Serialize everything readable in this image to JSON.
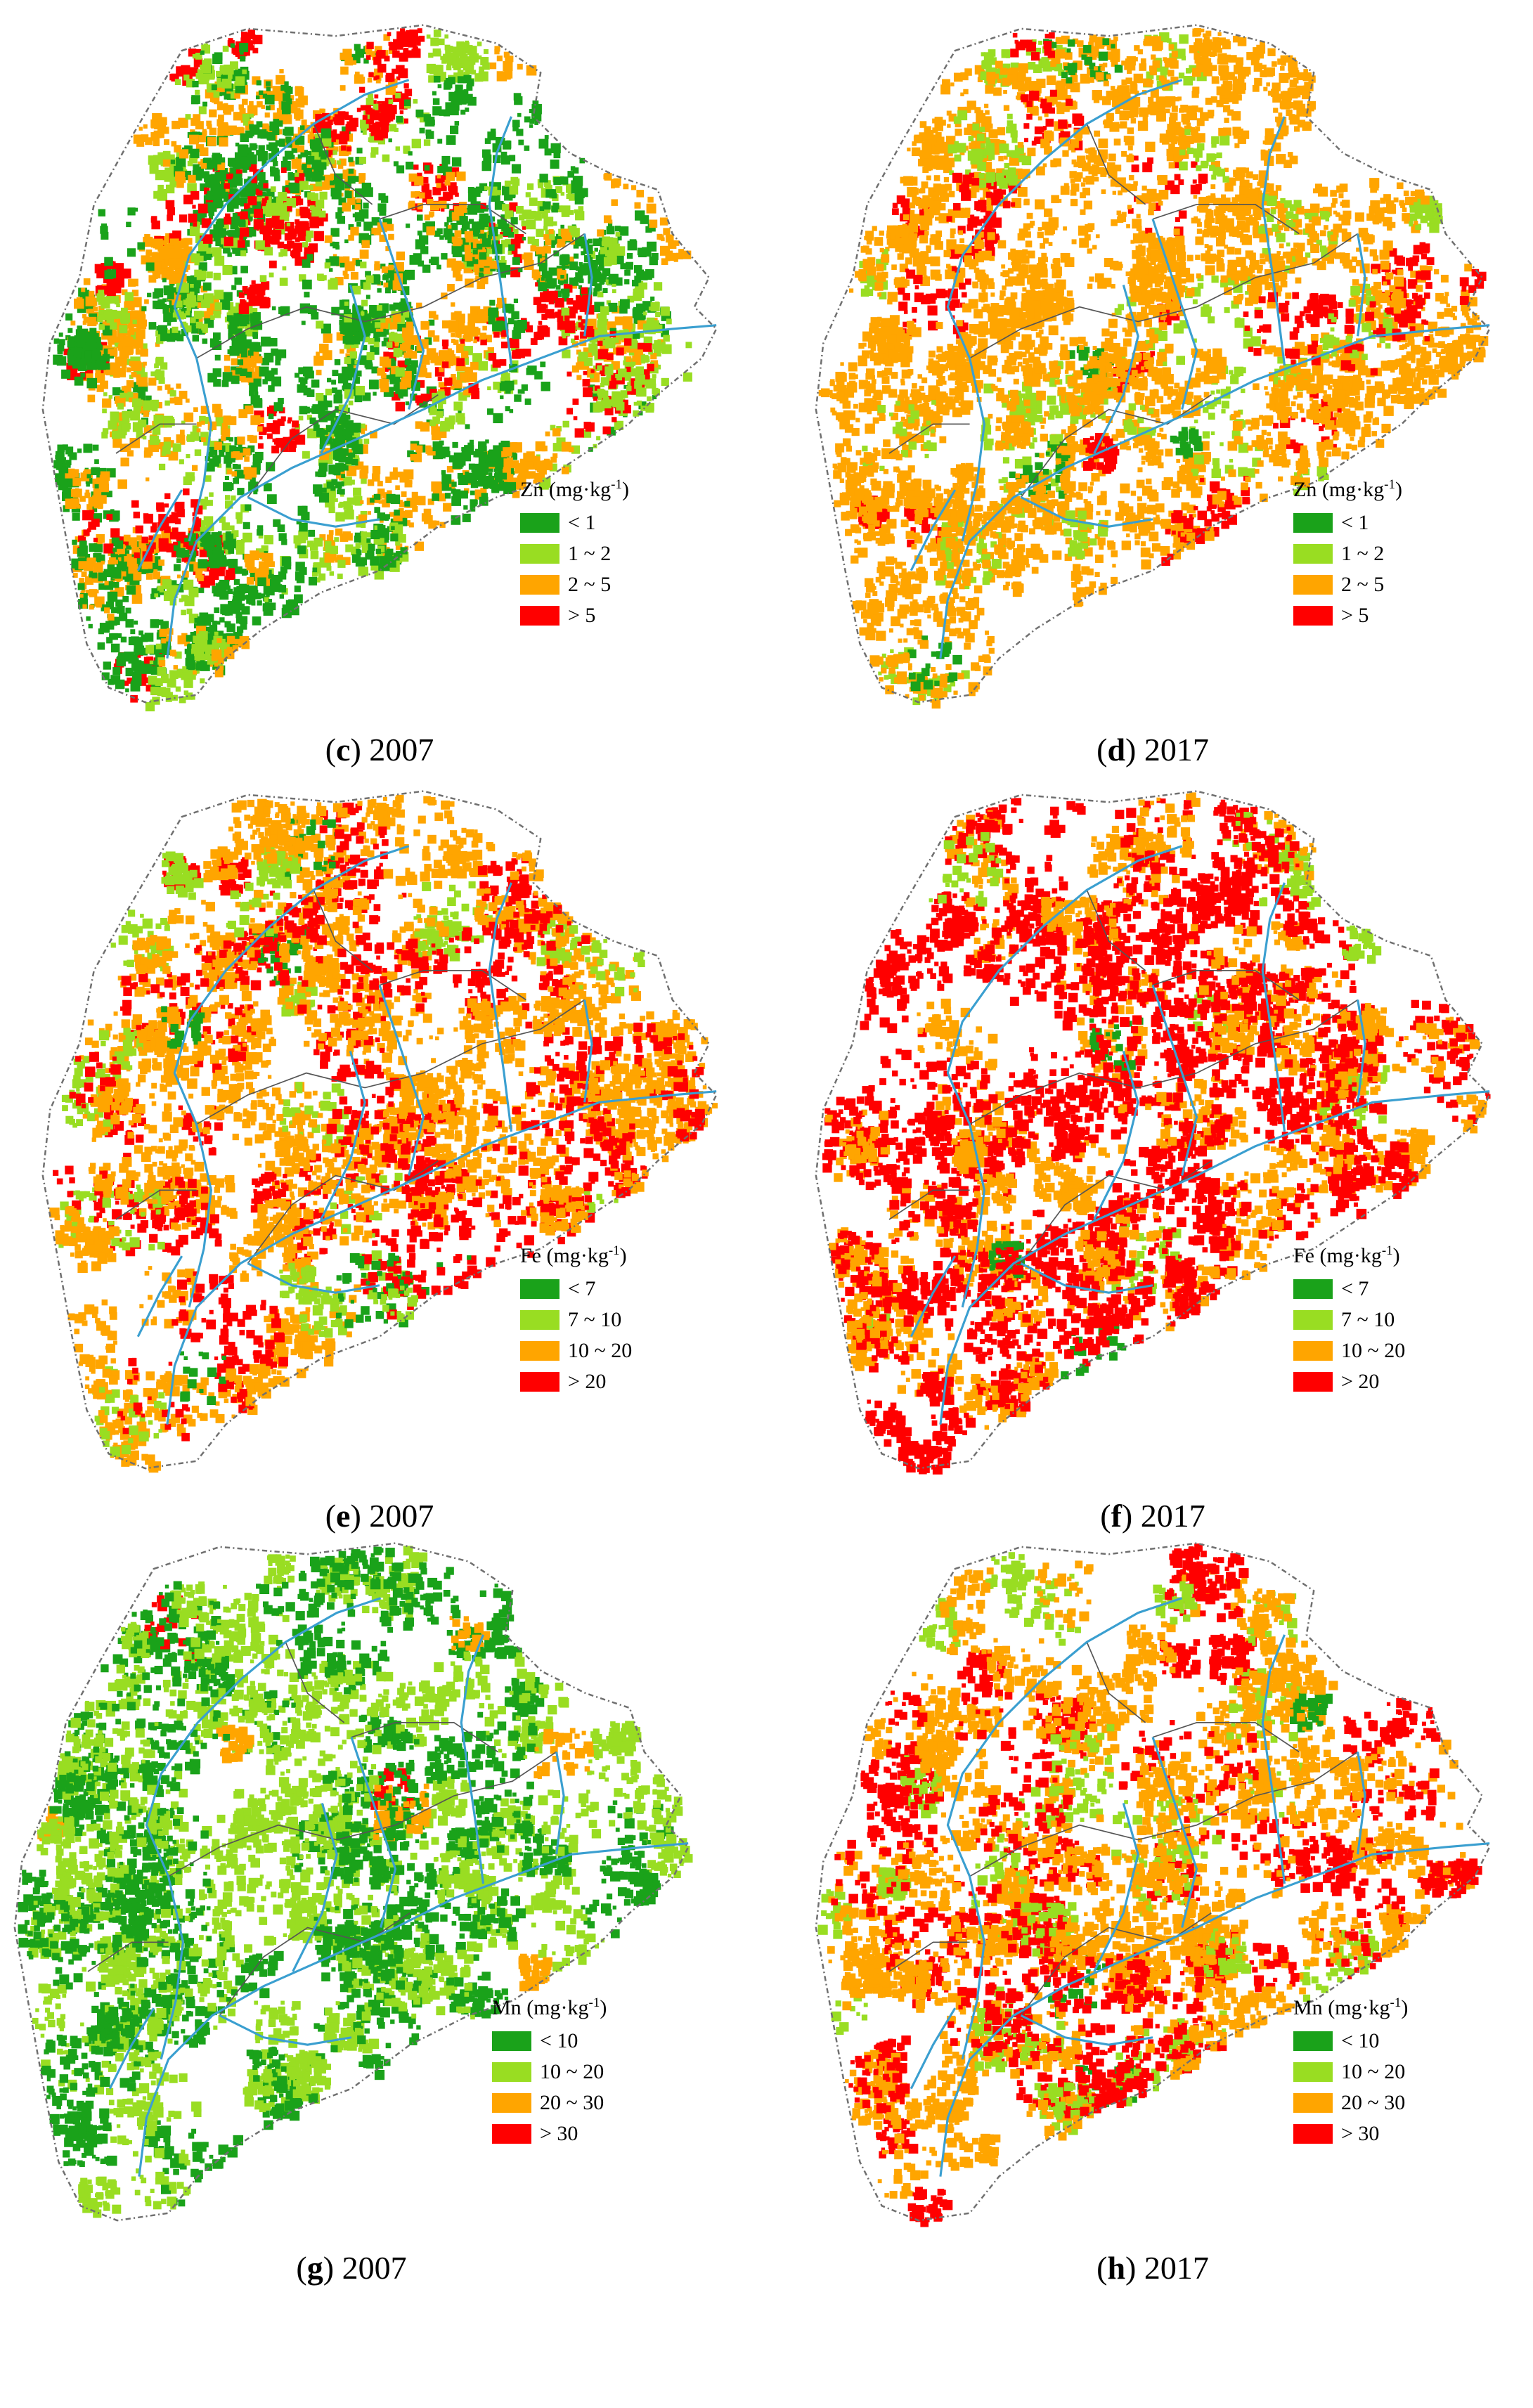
{
  "colors": {
    "c1": "#1aa21a",
    "c2": "#99dd22",
    "c3": "#ffa500",
    "c4": "#ff0000",
    "river": "#3a9fd0",
    "boundary": "#707070",
    "subboundary": "#555555"
  },
  "panels": [
    {
      "id": "c",
      "letter": "c",
      "year": "2007",
      "legend": {
        "element": "Zn",
        "unit": "(mg·kg",
        "exp": "-1",
        "close": ")",
        "classes": [
          "< 1",
          "1 ~ 2",
          "2 ~ 5",
          "> 5"
        ]
      },
      "weights": [
        0.38,
        0.26,
        0.2,
        0.16
      ]
    },
    {
      "id": "d",
      "letter": "d",
      "year": "2017",
      "legend": {
        "element": "Zn",
        "unit": "(mg·kg",
        "exp": "-1",
        "close": ")",
        "classes": [
          "< 1",
          "1 ~ 2",
          "2 ~ 5",
          "> 5"
        ]
      },
      "weights": [
        0.02,
        0.1,
        0.76,
        0.12
      ]
    },
    {
      "id": "e",
      "letter": "e",
      "year": "2007",
      "legend": {
        "element": "Fe",
        "unit": "(mg·kg",
        "exp": "-1",
        "close": ")",
        "classes": [
          "< 7",
          "7 ~ 10",
          "10 ~ 20",
          "> 20"
        ]
      },
      "weights": [
        0.03,
        0.12,
        0.55,
        0.3
      ]
    },
    {
      "id": "f",
      "letter": "f",
      "year": "2017",
      "legend": {
        "element": "Fe",
        "unit": "(mg·kg",
        "exp": "-1",
        "close": ")",
        "classes": [
          "< 7",
          "7 ~ 10",
          "10 ~ 20",
          "> 20"
        ]
      },
      "weights": [
        0.01,
        0.06,
        0.33,
        0.6
      ]
    },
    {
      "id": "g",
      "letter": "g",
      "year": "2007",
      "legend": {
        "element": "Mn",
        "unit": "(mg·kg",
        "exp": "-1",
        "close": ")",
        "classes": [
          "< 10",
          "10 ~ 20",
          "20 ~ 30",
          "> 30"
        ]
      },
      "weights": [
        0.45,
        0.49,
        0.05,
        0.01
      ]
    },
    {
      "id": "h",
      "letter": "h",
      "year": "2017",
      "legend": {
        "element": "Mn",
        "unit": "(mg·kg",
        "exp": "-1",
        "close": ")",
        "classes": [
          "< 10",
          "10 ~ 20",
          "20 ~ 30",
          "> 30"
        ]
      },
      "weights": [
        0.02,
        0.12,
        0.5,
        0.36
      ]
    }
  ]
}
